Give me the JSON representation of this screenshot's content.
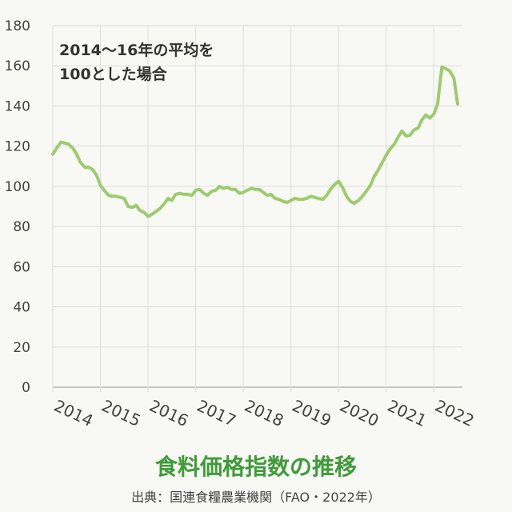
{
  "chart_data": {
    "type": "line",
    "title": "食料価格指数の推移",
    "source": "出典：国連食糧農業機関（FAO・2022年）",
    "annotation_line1": "2014〜16年の平均を",
    "annotation_line2": "100とした場合",
    "ylim": [
      0,
      180
    ],
    "yticks": [
      "0",
      "20",
      "40",
      "60",
      "80",
      "100",
      "120",
      "140",
      "160",
      "180"
    ],
    "xticks": [
      "2014",
      "2015",
      "2016",
      "2017",
      "2018",
      "2019",
      "2020",
      "2021",
      "2022"
    ],
    "xlim": [
      2014,
      2022.6
    ],
    "grid": true,
    "line_color": "#9ccc6e",
    "series": [
      {
        "x": [
          2014.0,
          2014.08,
          2014.17,
          2014.25,
          2014.33,
          2014.42,
          2014.5,
          2014.58,
          2014.67,
          2014.75,
          2014.83,
          2014.92,
          2015.0,
          2015.08,
          2015.17,
          2015.25,
          2015.33,
          2015.42,
          2015.5,
          2015.58,
          2015.67,
          2015.75,
          2015.83,
          2015.92,
          2016.0,
          2016.08,
          2016.17,
          2016.25,
          2016.33,
          2016.42,
          2016.5,
          2016.58,
          2016.67,
          2016.75,
          2016.83,
          2016.92,
          2017.0,
          2017.08,
          2017.17,
          2017.25,
          2017.33,
          2017.42,
          2017.5,
          2017.58,
          2017.67,
          2017.75,
          2017.83,
          2017.92,
          2018.0,
          2018.08,
          2018.17,
          2018.25,
          2018.33,
          2018.42,
          2018.5,
          2018.58,
          2018.67,
          2018.75,
          2018.83,
          2018.92,
          2019.0,
          2019.08,
          2019.17,
          2019.25,
          2019.33,
          2019.42,
          2019.5,
          2019.58,
          2019.67,
          2019.75,
          2019.83,
          2019.92,
          2020.0,
          2020.08,
          2020.17,
          2020.25,
          2020.33,
          2020.42,
          2020.5,
          2020.58,
          2020.67,
          2020.75,
          2020.83,
          2020.92,
          2021.0,
          2021.08,
          2021.17,
          2021.25,
          2021.33,
          2021.42,
          2021.5,
          2021.58,
          2021.67,
          2021.75,
          2021.83,
          2021.92,
          2022.0,
          2022.08,
          2022.17,
          2022.25,
          2022.33,
          2022.42,
          2022.5
        ],
        "y": [
          116,
          119,
          122,
          121.5,
          121,
          119,
          116,
          112,
          109.5,
          109.5,
          108.5,
          105.5,
          100.5,
          98,
          95.5,
          95,
          95,
          94.5,
          94,
          90,
          89.5,
          90.5,
          88,
          87,
          85,
          86,
          87.5,
          89,
          91,
          94,
          93,
          96,
          96.5,
          96,
          96,
          95.5,
          98,
          98.5,
          96.5,
          95.5,
          97.5,
          98,
          100,
          99,
          99.5,
          98.5,
          98.5,
          96.5,
          97,
          98,
          99,
          98.5,
          98.5,
          97,
          95.5,
          96,
          94,
          93.5,
          92.5,
          92,
          93,
          94,
          93.5,
          93.5,
          94,
          95,
          94.5,
          94,
          93.5,
          95.5,
          98.5,
          101,
          102.5,
          99.5,
          95,
          92.5,
          91.5,
          93,
          95,
          97.5,
          100.5,
          105,
          108,
          112,
          115.5,
          118.5,
          121,
          124.5,
          127.5,
          125,
          125.5,
          128,
          129,
          133,
          135.5,
          134,
          136,
          141,
          159.5,
          158.5,
          157.5,
          154,
          141
        ]
      }
    ]
  }
}
